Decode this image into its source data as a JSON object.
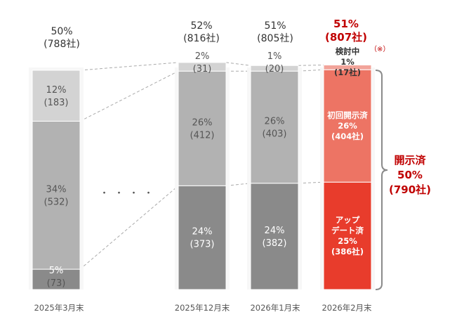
{
  "chart_data": {
    "type": "bar",
    "stacked": true,
    "categories": [
      "2025年3月末",
      "2025年12月末",
      "2026年1月末",
      "2026年2月末"
    ],
    "totals": [
      {
        "pct": "50%",
        "count": "(788社)"
      },
      {
        "pct": "52%",
        "count": "(816社)"
      },
      {
        "pct": "51%",
        "count": "(805社)"
      },
      {
        "pct": "51%",
        "count": "(807社)"
      }
    ],
    "series": [
      {
        "key": "bottom",
        "values": [
          73,
          373,
          382,
          386
        ],
        "labels": [
          [
            "5%",
            "(73)"
          ],
          [
            "24%",
            "(373)"
          ],
          [
            "24%",
            "(382)"
          ],
          [
            "アップ",
            "デート済",
            "25%",
            "(386社)"
          ]
        ]
      },
      {
        "key": "middle",
        "values": [
          532,
          412,
          403,
          404
        ],
        "labels": [
          [
            "34%",
            "(532)"
          ],
          [
            "26%",
            "(412)"
          ],
          [
            "26%",
            "(403)"
          ],
          [
            "初回開示済",
            "26%",
            "(404社)"
          ]
        ]
      },
      {
        "key": "top",
        "values": [
          183,
          31,
          20,
          17
        ],
        "labels": [
          [
            "12%",
            "(183)"
          ],
          [
            "2%",
            "(31)"
          ],
          [
            "1%",
            "(20)"
          ],
          [
            "検討中",
            "1%",
            "(17社)"
          ]
        ]
      }
    ],
    "annotation_mark": "（※）",
    "ellipsis": "・・・・",
    "bracket_label": [
      "開示済",
      "50%",
      "(790社)"
    ],
    "colors": {
      "bottom": "#8a8a8a",
      "middle": "#b2b2b2",
      "top": "#d3d3d3",
      "bottom_hl": "#e83c2c",
      "middle_hl": "#ed7464",
      "top_hl": "#f2a49a",
      "highlight_text": "#c00000"
    }
  }
}
